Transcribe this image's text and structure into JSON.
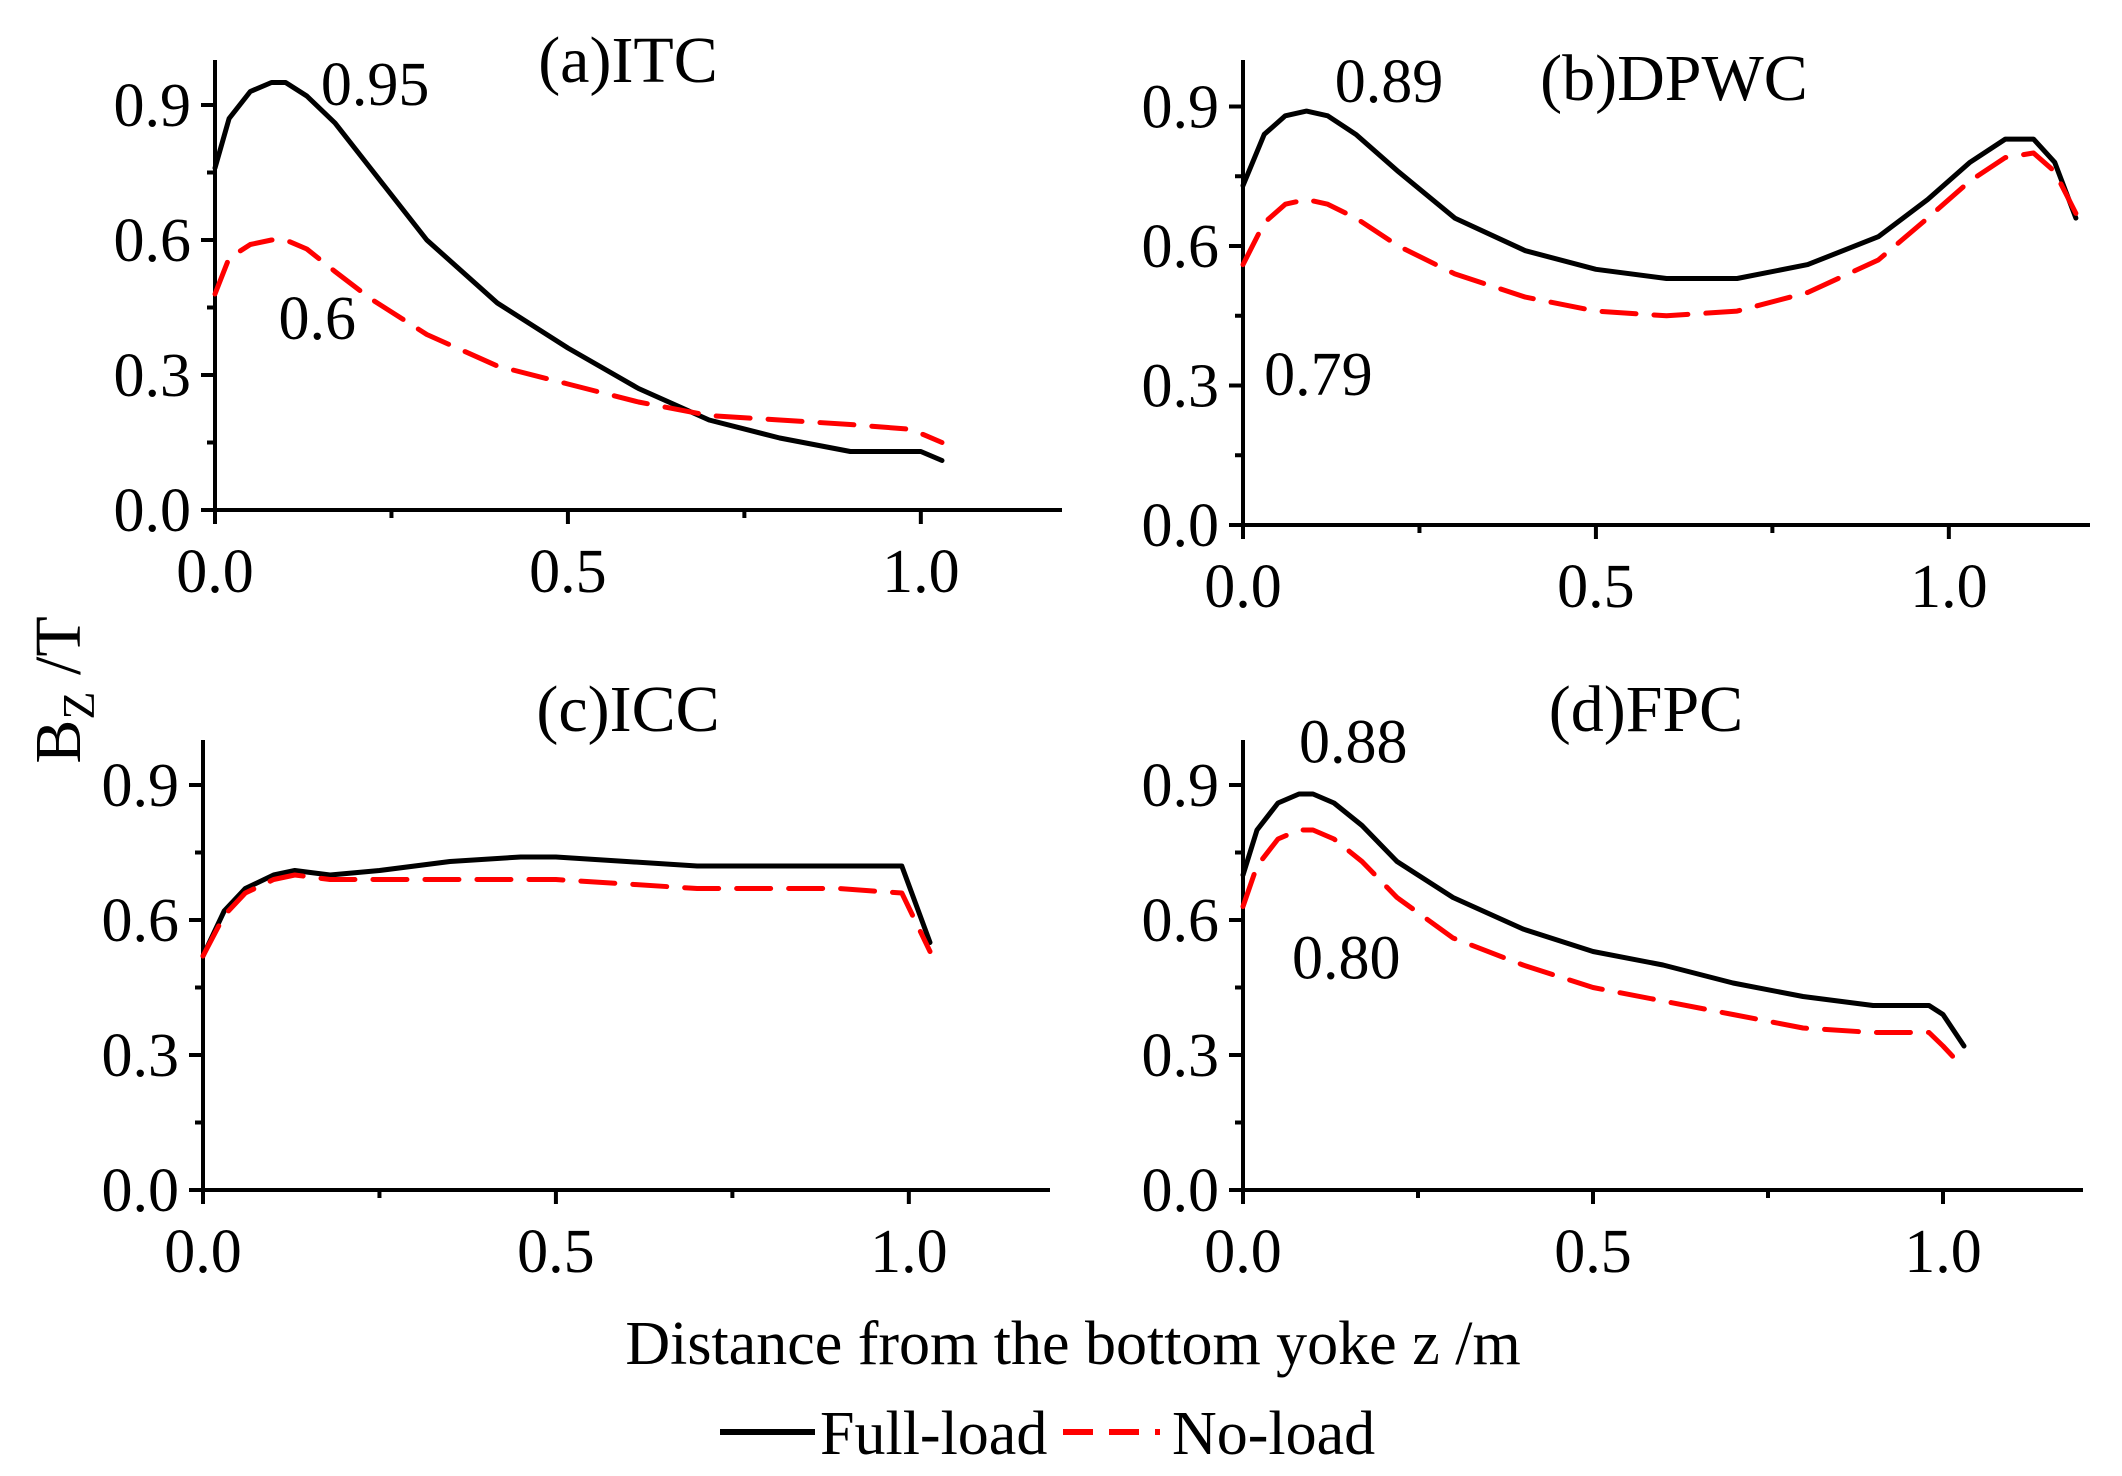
{
  "figure": {
    "ylabel_main": "B",
    "ylabel_sub": "Z",
    "ylabel_unit": " /T",
    "xlabel": "Distance from the bottom yoke z /m",
    "colors": {
      "full": "#000000",
      "no": "#ff0000"
    }
  },
  "legend": {
    "full_load": "Full-load",
    "no_load": "No-load"
  },
  "chart_data": [
    {
      "type": "line",
      "title": "(a)ITC",
      "xlim": [
        0,
        1.2
      ],
      "ylim": [
        0,
        1.0
      ],
      "xticks": [
        "0.0",
        "0.5",
        "1.0"
      ],
      "yticks": [
        "0.0",
        "0.3",
        "0.6",
        "0.9"
      ],
      "series": [
        {
          "name": "Full-load",
          "style": "solid",
          "x": [
            0,
            0.02,
            0.05,
            0.08,
            0.1,
            0.13,
            0.17,
            0.22,
            0.3,
            0.4,
            0.5,
            0.6,
            0.7,
            0.8,
            0.9,
            0.98,
            1.0,
            1.03
          ],
          "y": [
            0.76,
            0.87,
            0.93,
            0.95,
            0.95,
            0.92,
            0.86,
            0.76,
            0.6,
            0.46,
            0.36,
            0.27,
            0.2,
            0.16,
            0.13,
            0.13,
            0.13,
            0.11
          ]
        },
        {
          "name": "No-load",
          "style": "dashed",
          "x": [
            0,
            0.02,
            0.05,
            0.08,
            0.1,
            0.13,
            0.17,
            0.22,
            0.3,
            0.4,
            0.5,
            0.6,
            0.7,
            0.8,
            0.9,
            0.98,
            1.0,
            1.03
          ],
          "y": [
            0.48,
            0.56,
            0.59,
            0.6,
            0.6,
            0.58,
            0.53,
            0.47,
            0.39,
            0.32,
            0.28,
            0.24,
            0.21,
            0.2,
            0.19,
            0.18,
            0.17,
            0.15
          ]
        }
      ],
      "annotations": [
        {
          "text": "0.95",
          "x": 0.15,
          "y": 0.9
        },
        {
          "text": "0.6",
          "x": 0.09,
          "y": 0.38
        }
      ]
    },
    {
      "type": "line",
      "title": "(b)DPWC",
      "xlim": [
        0,
        1.2
      ],
      "ylim": [
        0,
        1.0
      ],
      "xticks": [
        "0.0",
        "0.5",
        "1.0"
      ],
      "yticks": [
        "0.0",
        "0.3",
        "0.6",
        "0.9"
      ],
      "series": [
        {
          "name": "Full-load",
          "style": "solid",
          "x": [
            0,
            0.03,
            0.06,
            0.09,
            0.12,
            0.16,
            0.22,
            0.3,
            0.4,
            0.5,
            0.6,
            0.7,
            0.8,
            0.9,
            0.97,
            1.03,
            1.08,
            1.12,
            1.15,
            1.18
          ],
          "y": [
            0.73,
            0.84,
            0.88,
            0.89,
            0.88,
            0.84,
            0.76,
            0.66,
            0.59,
            0.55,
            0.53,
            0.53,
            0.56,
            0.62,
            0.7,
            0.78,
            0.83,
            0.83,
            0.78,
            0.66
          ]
        },
        {
          "name": "No-load",
          "style": "dashed",
          "x": [
            0,
            0.03,
            0.06,
            0.09,
            0.12,
            0.16,
            0.22,
            0.3,
            0.4,
            0.5,
            0.6,
            0.7,
            0.8,
            0.9,
            0.97,
            1.03,
            1.08,
            1.12,
            1.15,
            1.18
          ],
          "y": [
            0.56,
            0.65,
            0.69,
            0.7,
            0.69,
            0.66,
            0.6,
            0.54,
            0.49,
            0.46,
            0.45,
            0.46,
            0.5,
            0.57,
            0.66,
            0.74,
            0.79,
            0.8,
            0.76,
            0.67
          ]
        }
      ],
      "annotations": [
        {
          "text": "0.89",
          "x": 0.13,
          "y": 0.91
        },
        {
          "text": "0.79",
          "x": 0.03,
          "y": 0.28
        }
      ]
    },
    {
      "type": "line",
      "title": "(c)ICC",
      "xlim": [
        0,
        1.2
      ],
      "ylim": [
        0,
        1.0
      ],
      "xticks": [
        "0.0",
        "0.5",
        "1.0"
      ],
      "yticks": [
        "0.0",
        "0.3",
        "0.6",
        "0.9"
      ],
      "series": [
        {
          "name": "Full-load",
          "style": "solid",
          "x": [
            0,
            0.03,
            0.06,
            0.1,
            0.13,
            0.18,
            0.25,
            0.35,
            0.45,
            0.5,
            0.6,
            0.7,
            0.8,
            0.9,
            0.99,
            1.03
          ],
          "y": [
            0.52,
            0.62,
            0.67,
            0.7,
            0.71,
            0.7,
            0.71,
            0.73,
            0.74,
            0.74,
            0.73,
            0.72,
            0.72,
            0.72,
            0.72,
            0.55
          ]
        },
        {
          "name": "No-load",
          "style": "dashed",
          "x": [
            0,
            0.03,
            0.06,
            0.1,
            0.13,
            0.18,
            0.25,
            0.35,
            0.45,
            0.5,
            0.6,
            0.7,
            0.8,
            0.9,
            0.99,
            1.03
          ],
          "y": [
            0.52,
            0.61,
            0.66,
            0.69,
            0.7,
            0.69,
            0.69,
            0.69,
            0.69,
            0.69,
            0.68,
            0.67,
            0.67,
            0.67,
            0.66,
            0.53
          ]
        }
      ],
      "annotations": []
    },
    {
      "type": "line",
      "title": "(d)FPC",
      "xlim": [
        0,
        1.2
      ],
      "ylim": [
        0,
        1.0
      ],
      "xticks": [
        "0.0",
        "0.5",
        "1.0"
      ],
      "yticks": [
        "0.0",
        "0.3",
        "0.6",
        "0.9"
      ],
      "series": [
        {
          "name": "Full-load",
          "style": "solid",
          "x": [
            0,
            0.02,
            0.05,
            0.08,
            0.1,
            0.13,
            0.17,
            0.22,
            0.3,
            0.4,
            0.5,
            0.6,
            0.7,
            0.8,
            0.9,
            0.98,
            1.0,
            1.03
          ],
          "y": [
            0.7,
            0.8,
            0.86,
            0.88,
            0.88,
            0.86,
            0.81,
            0.73,
            0.65,
            0.58,
            0.53,
            0.5,
            0.46,
            0.43,
            0.41,
            0.41,
            0.39,
            0.32
          ]
        },
        {
          "name": "No-load",
          "style": "dashed",
          "x": [
            0,
            0.02,
            0.05,
            0.08,
            0.1,
            0.13,
            0.17,
            0.22,
            0.3,
            0.4,
            0.5,
            0.6,
            0.7,
            0.8,
            0.9,
            0.98,
            1.0,
            1.03
          ],
          "y": [
            0.63,
            0.72,
            0.78,
            0.8,
            0.8,
            0.78,
            0.73,
            0.65,
            0.56,
            0.5,
            0.45,
            0.42,
            0.39,
            0.36,
            0.35,
            0.35,
            0.32,
            0.27
          ]
        }
      ],
      "annotations": [
        {
          "text": "0.88",
          "x": 0.08,
          "y": 0.95
        },
        {
          "text": "0.80",
          "x": 0.07,
          "y": 0.47
        }
      ]
    }
  ]
}
